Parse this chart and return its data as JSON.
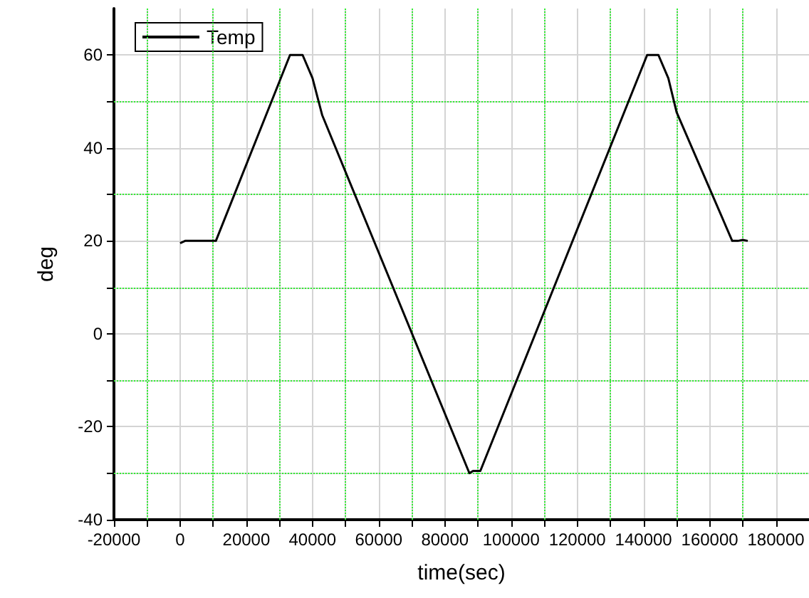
{
  "chart_data": {
    "type": "line",
    "xlabel": "time(sec)",
    "ylabel": "deg",
    "xlim": [
      -20000,
      190000
    ],
    "xticks": [
      -20000,
      {
        "value": -10000,
        "label": null
      },
      0,
      {
        "value": 10000,
        "label": null
      },
      20000,
      {
        "value": 30000,
        "label": null
      },
      40000,
      {
        "value": 50000,
        "label": null
      },
      60000,
      {
        "value": 70000,
        "label": null
      },
      80000,
      {
        "value": 90000,
        "label": null
      },
      100000,
      {
        "value": 110000,
        "label": null
      },
      120000,
      {
        "value": 130000,
        "label": null
      },
      140000,
      {
        "value": 150000,
        "label": null
      },
      160000,
      {
        "value": 170000,
        "label": null
      },
      180000
    ],
    "ylim": [
      -40,
      70
    ],
    "yticks": [
      -40,
      {
        "value": -30,
        "label": null
      },
      -20,
      {
        "value": -10,
        "label": null
      },
      0,
      {
        "value": 10,
        "label": null
      },
      20,
      {
        "value": 30,
        "label": null
      },
      40,
      {
        "value": 50,
        "label": null
      },
      60
    ],
    "grid": true,
    "legend": "top left",
    "marker": "none",
    "line_style": "solid",
    "series": [
      {
        "name": "Temp",
        "color": "#000000",
        "x": [
          0,
          1500,
          4000,
          8000,
          10800,
          33200,
          37000,
          40000,
          42900,
          87400,
          88500,
          90700,
          141100,
          144500,
          147500,
          150000,
          166800,
          168500,
          170000,
          171500
        ],
        "values": [
          19.5,
          20,
          20,
          20,
          20,
          60,
          60,
          55,
          47.1,
          -30,
          -29.5,
          -29.5,
          60,
          60,
          55,
          47.7,
          20,
          20,
          20.2,
          20
        ]
      }
    ]
  }
}
